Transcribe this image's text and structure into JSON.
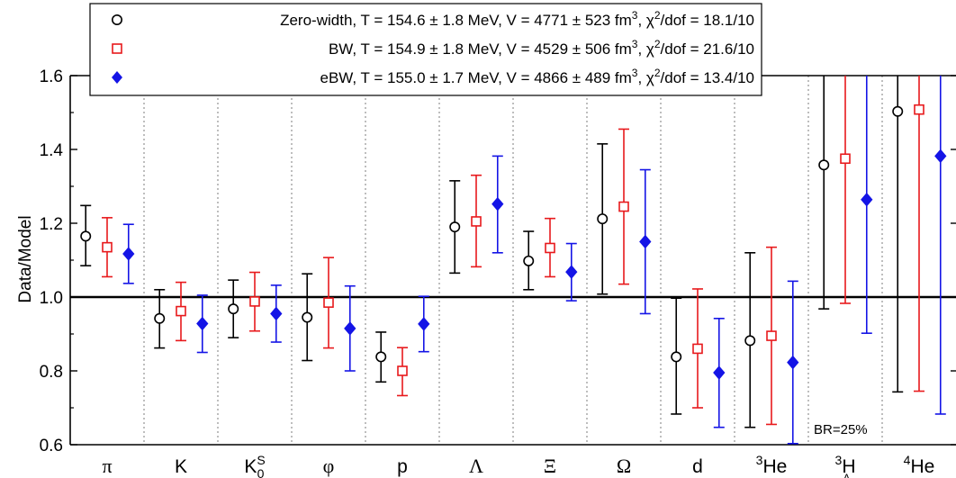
{
  "chart_data": {
    "type": "scatter",
    "ylabel": "Data/Model",
    "ylim": [
      0.6,
      1.6
    ],
    "yticks": [
      "0.6",
      "0.8",
      "1.0",
      "1.2",
      "1.4",
      "1.6"
    ],
    "reference_line": 1.0,
    "categories": [
      "π",
      "K",
      "K0S",
      "φ",
      "p",
      "Λ",
      "Ξ",
      "Ω",
      "d",
      "3He",
      "3ΛH",
      "4He"
    ],
    "series": [
      {
        "name": "Zero-width, T = 154.6 ± 1.8 MeV, V = 4771 ± 523 fm³, χ²/dof = 18.1/10",
        "marker": "open-circle",
        "color": "#000000",
        "values": [
          1.165,
          0.942,
          0.968,
          0.945,
          0.838,
          1.19,
          1.098,
          1.212,
          0.838,
          0.882,
          1.358,
          1.503
        ],
        "err_low": [
          1.085,
          0.862,
          0.89,
          0.828,
          0.77,
          1.065,
          1.02,
          1.008,
          0.683,
          0.647,
          0.968,
          0.743
        ],
        "err_high": [
          1.248,
          1.02,
          1.046,
          1.063,
          0.905,
          1.315,
          1.178,
          1.415,
          0.997,
          1.12,
          1.6,
          1.6
        ]
      },
      {
        "name": "BW, T = 154.9 ± 1.8 MeV, V = 4529 ± 506 fm³, χ²/dof = 21.6/10",
        "marker": "open-square",
        "color": "#e8191c",
        "values": [
          1.135,
          0.962,
          0.988,
          0.985,
          0.8,
          1.205,
          1.133,
          1.245,
          0.86,
          0.895,
          1.375,
          1.508
        ],
        "err_low": [
          1.055,
          0.882,
          0.908,
          0.862,
          0.733,
          1.082,
          1.055,
          1.035,
          0.7,
          0.655,
          0.983,
          0.745
        ],
        "err_high": [
          1.215,
          1.04,
          1.067,
          1.107,
          0.863,
          1.33,
          1.213,
          1.455,
          1.022,
          1.135,
          1.6,
          1.6
        ]
      },
      {
        "name": "eBW, T = 155.0 ± 1.7 MeV, V = 4866 ± 489 fm³, χ²/dof = 13.4/10",
        "marker": "filled-diamond",
        "color": "#1414e6",
        "values": [
          1.117,
          0.928,
          0.955,
          0.915,
          0.927,
          1.252,
          1.068,
          1.15,
          0.795,
          0.823,
          1.264,
          1.382
        ],
        "err_low": [
          1.037,
          0.85,
          0.878,
          0.8,
          0.852,
          1.12,
          0.99,
          0.955,
          0.647,
          0.603,
          0.902,
          0.683
        ],
        "err_high": [
          1.197,
          1.005,
          1.032,
          1.03,
          1.002,
          1.382,
          1.145,
          1.345,
          0.942,
          1.043,
          1.6,
          1.6
        ]
      }
    ],
    "annotation": "BR=25%",
    "legend": [
      {
        "label": "Zero-width,",
        "params": "T = 154.6 ± 1.8 MeV, V = 4771 ± 523 fm",
        "chi": ", χ",
        "dof": "/dof = 18.1/10"
      },
      {
        "label": "BW,",
        "params": "T = 154.9 ± 1.8 MeV, V = 4529 ± 506 fm",
        "chi": ", χ",
        "dof": "/dof = 21.6/10"
      },
      {
        "label": "eBW,",
        "params": "T = 155.0 ± 1.7 MeV, V = 4866 ± 489 fm",
        "chi": ", χ",
        "dof": "/dof = 13.4/10"
      }
    ]
  }
}
